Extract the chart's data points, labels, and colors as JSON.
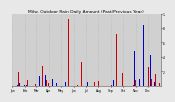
{
  "title": "Milw. Outdoor Rain Daily Amount (Past/Previous Year)",
  "n_days": 365,
  "background_color": "#e8e8e8",
  "plot_bg_color": "#d0d0d0",
  "bar_color_current": "#cc0000",
  "bar_color_previous": "#0000cc",
  "ylim": [
    0,
    1.0
  ],
  "ytick_values": [
    0.2,
    0.4,
    0.6,
    0.8,
    1.0
  ],
  "ytick_labels": [
    ".2",
    ".4",
    ".6",
    ".8",
    "1."
  ],
  "grid_color": "#aaaaaa",
  "title_fontsize": 3.2,
  "tick_fontsize": 2.2,
  "month_starts": [
    0,
    31,
    59,
    90,
    120,
    151,
    181,
    212,
    243,
    273,
    304,
    334
  ],
  "month_labels": [
    "Jan",
    "Feb",
    "Mar",
    "Apr",
    "May",
    "Jun",
    "Jul",
    "Aug",
    "Sep",
    "Oct",
    "Nov",
    "Dec"
  ]
}
